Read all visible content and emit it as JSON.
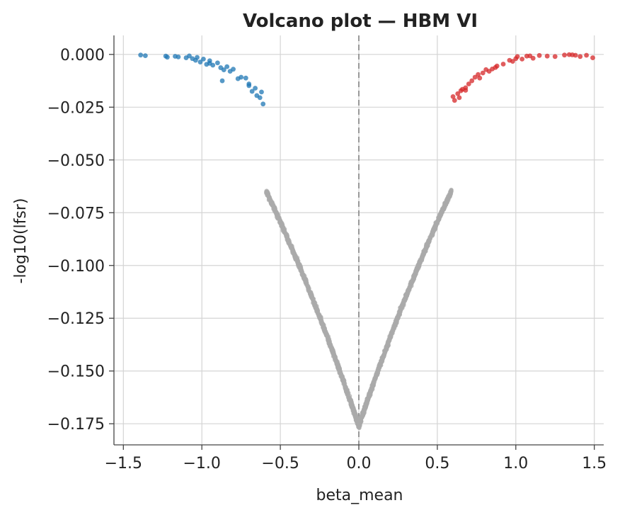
{
  "chart_data": {
    "type": "scatter",
    "title": "Volcano plot — HBM VI",
    "xlabel": "beta_mean",
    "ylabel": "-log10(lfsr)",
    "xlim": [
      -1.56,
      1.56
    ],
    "ylim": [
      -0.185,
      0.009
    ],
    "xticks": [
      -1.5,
      -1.0,
      -0.5,
      0.0,
      0.5,
      1.0,
      1.5
    ],
    "xtick_labels": [
      "−1.5",
      "−1.0",
      "−0.5",
      "0.0",
      "0.5",
      "1.0",
      "1.5"
    ],
    "yticks": [
      0.0,
      -0.025,
      -0.05,
      -0.075,
      -0.1,
      -0.125,
      -0.15,
      -0.175
    ],
    "ytick_labels": [
      "0.000",
      "−0.025",
      "−0.050",
      "−0.075",
      "−0.100",
      "−0.125",
      "−0.150",
      "−0.175"
    ],
    "grid": true,
    "reference_line": {
      "x": 0.0,
      "style": "dashed",
      "color": "#999999"
    },
    "colors": {
      "down": "#1f77b4",
      "up": "#d62728",
      "ns": "#aaaaaa"
    },
    "series": [
      {
        "values": [
          [
            -1.39,
            -0.0003
          ],
          [
            -1.36,
            -0.0006
          ],
          [
            -1.23,
            -0.0008
          ],
          [
            -1.22,
            -0.0013
          ],
          [
            -1.15,
            -0.0012
          ],
          [
            -1.1,
            -0.0016
          ],
          [
            -1.08,
            -0.0007
          ],
          [
            -1.06,
            -0.002
          ],
          [
            -1.04,
            -0.0028
          ],
          [
            -1.03,
            -0.0014
          ],
          [
            -1.01,
            -0.0036
          ],
          [
            -0.99,
            -0.0022
          ],
          [
            -0.97,
            -0.0047
          ],
          [
            -0.95,
            -0.003
          ],
          [
            -0.93,
            -0.0051
          ],
          [
            -0.9,
            -0.004
          ],
          [
            -0.88,
            -0.0063
          ],
          [
            -0.86,
            -0.0073
          ],
          [
            -0.84,
            -0.0058
          ],
          [
            -0.82,
            -0.008
          ],
          [
            -0.8,
            -0.007
          ],
          [
            -0.77,
            -0.0115
          ],
          [
            -0.75,
            -0.0108
          ],
          [
            -0.72,
            -0.0112
          ],
          [
            -0.7,
            -0.014
          ],
          [
            -0.68,
            -0.0175
          ],
          [
            -0.66,
            -0.016
          ],
          [
            -0.65,
            -0.0195
          ],
          [
            -0.63,
            -0.0205
          ],
          [
            -0.62,
            -0.0178
          ],
          [
            -0.61,
            -0.0235
          ],
          [
            -0.87,
            -0.0125
          ],
          [
            -0.7,
            -0.0148
          ],
          [
            -1.17,
            -0.0009
          ],
          [
            -0.95,
            -0.0042
          ]
        ]
      },
      {
        "values": [
          [
            0.6,
            -0.02
          ],
          [
            0.61,
            -0.0218
          ],
          [
            0.63,
            -0.0186
          ],
          [
            0.64,
            -0.0205
          ],
          [
            0.65,
            -0.0172
          ],
          [
            0.66,
            -0.0165
          ],
          [
            0.68,
            -0.017
          ],
          [
            0.7,
            -0.014
          ],
          [
            0.72,
            -0.0125
          ],
          [
            0.74,
            -0.0108
          ],
          [
            0.76,
            -0.0095
          ],
          [
            0.77,
            -0.0112
          ],
          [
            0.79,
            -0.0088
          ],
          [
            0.81,
            -0.0072
          ],
          [
            0.83,
            -0.008
          ],
          [
            0.85,
            -0.0069
          ],
          [
            0.88,
            -0.0055
          ],
          [
            0.92,
            -0.0046
          ],
          [
            0.96,
            -0.0028
          ],
          [
            0.98,
            -0.0033
          ],
          [
            1.01,
            -0.001
          ],
          [
            1.04,
            -0.0022
          ],
          [
            1.07,
            -0.0008
          ],
          [
            1.09,
            -0.0007
          ],
          [
            1.11,
            -0.0018
          ],
          [
            1.15,
            -0.0005
          ],
          [
            1.2,
            -0.0008
          ],
          [
            1.25,
            -0.001
          ],
          [
            1.31,
            -0.0003
          ],
          [
            1.34,
            -0.0001
          ],
          [
            1.36,
            -0.0002
          ],
          [
            1.38,
            -0.0004
          ],
          [
            1.41,
            -0.001
          ],
          [
            1.45,
            -0.0004
          ],
          [
            1.49,
            -0.0016
          ],
          [
            0.68,
            -0.0158
          ],
          [
            0.87,
            -0.0062
          ],
          [
            1.0,
            -0.002
          ]
        ]
      }
    ]
  }
}
